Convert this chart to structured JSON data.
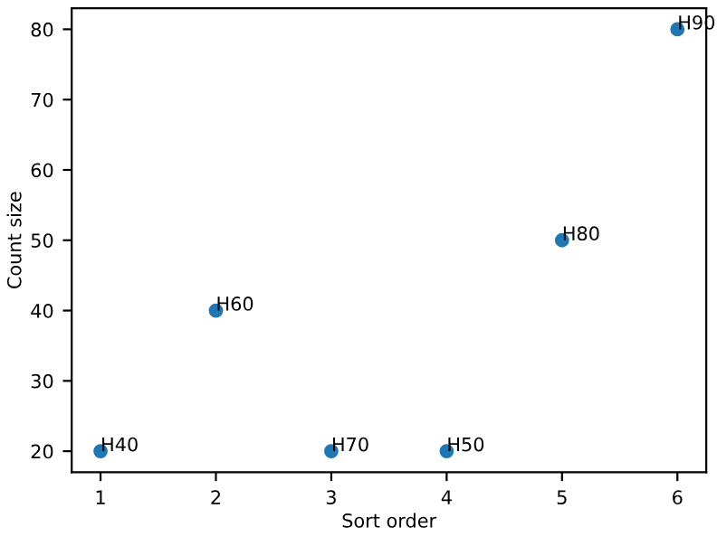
{
  "chart_data": {
    "type": "scatter",
    "xlabel": "Sort order",
    "ylabel": "Count size",
    "x": [
      1,
      2,
      3,
      4,
      5,
      6
    ],
    "series": [
      {
        "color": "#1f77b4",
        "values": [
          20,
          40,
          20,
          20,
          50,
          80
        ]
      }
    ],
    "annotations": [
      {
        "text": "H40",
        "x": 1,
        "y": 20
      },
      {
        "text": "H60",
        "x": 2,
        "y": 40
      },
      {
        "text": "H70",
        "x": 3,
        "y": 20
      },
      {
        "text": "H50",
        "x": 4,
        "y": 20
      },
      {
        "text": "H80",
        "x": 5,
        "y": 50
      },
      {
        "text": "H90",
        "x": 6,
        "y": 80
      }
    ],
    "xlim": [
      0.75,
      6.25
    ],
    "ylim": [
      17,
      83
    ],
    "xticks": [
      1,
      2,
      3,
      4,
      5,
      6
    ],
    "yticks": [
      20,
      30,
      40,
      50,
      60,
      70,
      80
    ],
    "marker": "circle",
    "grid": false,
    "legend": false
  }
}
